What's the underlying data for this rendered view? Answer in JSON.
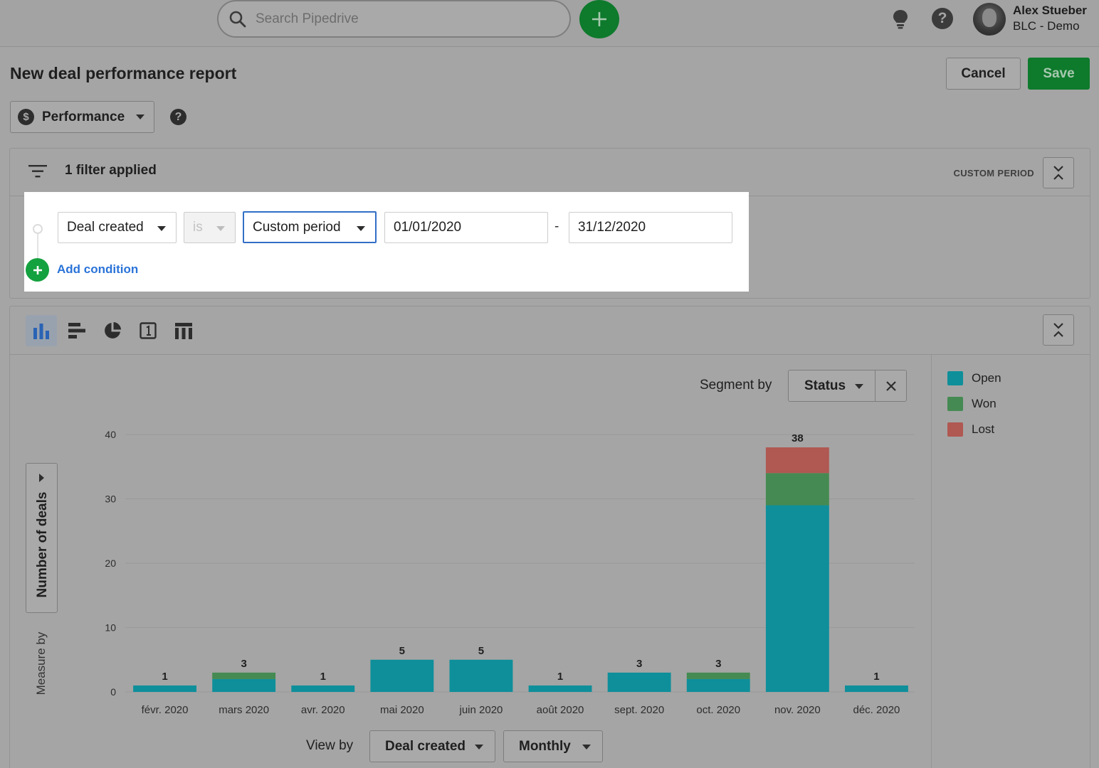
{
  "topbar": {
    "search_placeholder": "Search Pipedrive",
    "user_name": "Alex Stueber",
    "user_org": "BLC - Demo"
  },
  "header": {
    "title": "New deal performance report",
    "cancel_label": "Cancel",
    "save_label": "Save",
    "report_type": "Performance"
  },
  "filters": {
    "summary": "1 filter applied",
    "period_badge": "CUSTOM PERIOD",
    "field": "Deal created",
    "operator": "is",
    "period": "Custom period",
    "date_from": "01/01/2020",
    "date_separator": "-",
    "date_to": "31/12/2020",
    "add_condition_label": "Add condition"
  },
  "chart_toolbar": {
    "icons": [
      "bar-chart-icon",
      "horizontal-bar-chart-icon",
      "pie-chart-icon",
      "scorecard-icon",
      "table-icon"
    ],
    "active": "bar-chart-icon"
  },
  "segment": {
    "label": "Segment by",
    "value": "Status"
  },
  "legend": [
    {
      "label": "Open",
      "color": "#0e8f9a"
    },
    {
      "label": "Won",
      "color": "#458a52"
    },
    {
      "label": "Lost",
      "color": "#b05852"
    }
  ],
  "measure": {
    "value": "Number of deals",
    "label": "Measure by"
  },
  "view_by": {
    "label": "View by",
    "field": "Deal created",
    "interval": "Monthly"
  },
  "chart_data": {
    "type": "bar",
    "stacked": true,
    "categories": [
      "févr. 2020",
      "mars 2020",
      "avr. 2020",
      "mai 2020",
      "juin 2020",
      "août 2020",
      "sept. 2020",
      "oct. 2020",
      "nov. 2020",
      "déc. 2020"
    ],
    "series": [
      {
        "name": "Open",
        "values": [
          1,
          2,
          1,
          5,
          5,
          1,
          3,
          2,
          29,
          1
        ]
      },
      {
        "name": "Won",
        "values": [
          0,
          1,
          0,
          0,
          0,
          0,
          0,
          1,
          5,
          0
        ]
      },
      {
        "name": "Lost",
        "values": [
          0,
          0,
          0,
          0,
          0,
          0,
          0,
          0,
          4,
          0
        ]
      }
    ],
    "totals": [
      1,
      3,
      1,
      5,
      5,
      1,
      3,
      3,
      38,
      1
    ],
    "y_ticks": [
      0,
      10,
      20,
      30,
      40
    ],
    "ylim": [
      0,
      40
    ],
    "ylabel": "Number of deals",
    "xlabel": "",
    "grid": true
  }
}
